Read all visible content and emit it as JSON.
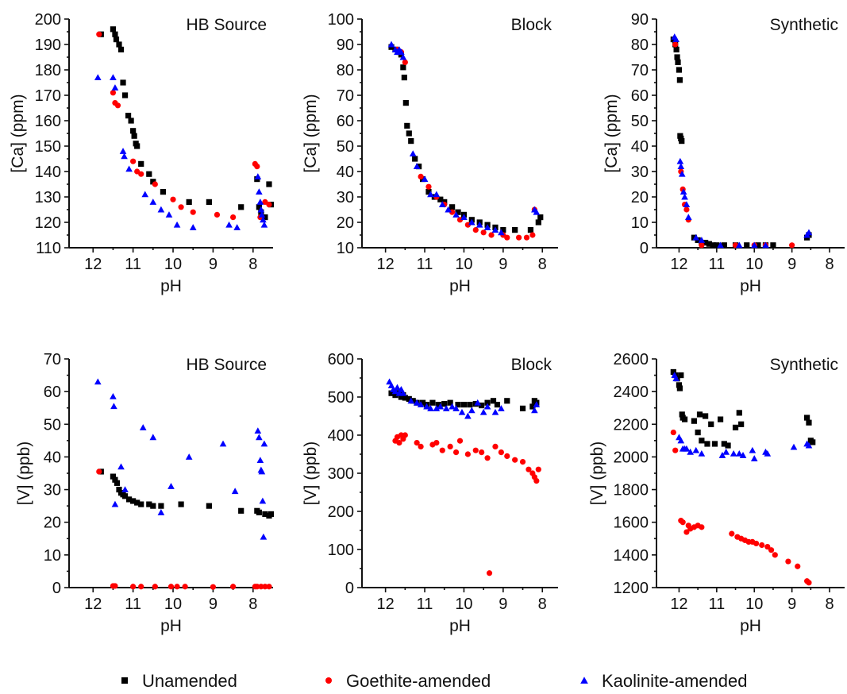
{
  "colors": {
    "Unamended": "#000000",
    "Goethite-amended": "#ff0000",
    "Kaolinite-amended": "#0000ff"
  },
  "legend": {
    "placement": "bottom-center",
    "items": [
      {
        "label": "Unamended",
        "marker": "square",
        "color": "#000000"
      },
      {
        "label": "Goethite-amended",
        "marker": "circle",
        "color": "#ff0000"
      },
      {
        "label": "Kaolinite-amended",
        "marker": "triangle",
        "color": "#0000ff"
      }
    ]
  },
  "chart_data": [
    {
      "type": "scatter",
      "title": "HB Source",
      "xlabel": "pH",
      "ylabel": "[Ca] (ppm)",
      "xlim": [
        12.6,
        7.5
      ],
      "ylim": [
        110,
        200
      ],
      "xticks": [
        12,
        11,
        10,
        9,
        8
      ],
      "yticks": [
        110,
        120,
        130,
        140,
        150,
        160,
        170,
        180,
        190,
        200
      ],
      "series": [
        {
          "name": "Unamended",
          "x": [
            11.8,
            11.5,
            11.45,
            11.42,
            11.35,
            11.3,
            11.25,
            11.2,
            11.12,
            11.05,
            11.0,
            10.97,
            10.93,
            10.9,
            10.8,
            10.6,
            10.5,
            10.25,
            9.6,
            9.1,
            8.3,
            7.9,
            7.85,
            7.8,
            7.7,
            7.6,
            7.55
          ],
          "y": [
            194,
            196,
            194,
            192,
            190,
            188,
            175,
            170,
            162,
            160,
            156,
            154,
            151,
            150,
            143,
            139,
            136,
            132,
            128,
            128,
            126,
            137,
            126,
            124,
            122,
            135,
            127
          ]
        },
        {
          "name": "Goethite-amended",
          "x": [
            11.85,
            11.5,
            11.45,
            11.38,
            11.0,
            10.9,
            10.8,
            10.45,
            10.0,
            9.8,
            9.5,
            8.9,
            8.5,
            7.95,
            7.9,
            7.82,
            7.7,
            7.6
          ],
          "y": [
            194,
            171,
            167,
            166,
            144,
            140,
            139,
            135,
            129,
            126,
            124,
            123,
            122,
            143,
            142,
            122,
            128,
            127
          ]
        },
        {
          "name": "Kaolinite-amended",
          "x": [
            11.88,
            11.5,
            11.45,
            11.25,
            11.22,
            11.1,
            10.7,
            10.5,
            10.3,
            10.1,
            9.9,
            9.5,
            8.6,
            8.4,
            7.88,
            7.85,
            7.82,
            7.8,
            7.78,
            7.75,
            7.72
          ],
          "y": [
            177,
            177,
            173,
            148,
            146,
            141,
            131,
            128,
            125,
            123,
            119,
            118,
            119,
            118,
            138,
            132,
            128,
            125,
            123,
            121,
            119
          ]
        }
      ]
    },
    {
      "type": "scatter",
      "title": "Block",
      "xlabel": "pH",
      "ylabel": "[Ca] (ppm)",
      "xlim": [
        12.6,
        7.6
      ],
      "ylim": [
        10,
        100
      ],
      "xticks": [
        12,
        11,
        10,
        9,
        8
      ],
      "yticks": [
        10,
        20,
        30,
        40,
        50,
        60,
        70,
        80,
        90,
        100
      ],
      "series": [
        {
          "name": "Unamended",
          "x": [
            11.85,
            11.75,
            11.65,
            11.6,
            11.55,
            11.52,
            11.48,
            11.45,
            11.4,
            11.35,
            11.25,
            11.15,
            11.05,
            10.9,
            10.75,
            10.6,
            10.5,
            10.3,
            10.15,
            10.0,
            9.8,
            9.6,
            9.4,
            9.2,
            9.0,
            8.7,
            8.3,
            8.1,
            8.05
          ],
          "y": [
            89,
            88,
            87,
            86,
            81,
            77,
            67,
            58,
            55,
            52,
            45,
            42,
            37,
            32,
            30,
            29,
            28,
            26,
            24,
            23,
            21,
            20,
            19,
            18,
            17,
            17,
            17,
            20,
            22
          ]
        },
        {
          "name": "Goethite-amended",
          "x": [
            11.7,
            11.6,
            11.5,
            11.1,
            10.9,
            10.7,
            10.5,
            10.3,
            10.1,
            9.9,
            9.7,
            9.5,
            9.3,
            9.0,
            8.9,
            8.6,
            8.4,
            8.25,
            8.2
          ],
          "y": [
            88,
            87,
            83,
            38,
            34,
            30,
            27,
            24,
            21,
            19,
            17,
            16,
            15,
            15,
            14,
            14,
            14,
            15,
            25
          ]
        },
        {
          "name": "Kaolinite-amended",
          "x": [
            11.85,
            11.75,
            11.7,
            11.65,
            11.6,
            11.55,
            11.3,
            11.2,
            11.0,
            10.85,
            10.7,
            10.55,
            10.4,
            10.2,
            10.0,
            9.8,
            9.6,
            9.4,
            9.2,
            9.05,
            8.2,
            8.15
          ],
          "y": [
            90,
            88,
            87,
            88,
            87,
            85,
            47,
            42,
            37,
            31,
            31,
            27,
            25,
            23,
            22,
            20,
            19,
            18,
            17,
            16,
            25,
            24
          ]
        }
      ]
    },
    {
      "type": "scatter",
      "title": "Synthetic",
      "xlabel": "pH",
      "ylabel": "[Ca] (ppm)",
      "xlim": [
        12.6,
        7.6
      ],
      "ylim": [
        0,
        90
      ],
      "xticks": [
        12,
        11,
        10,
        9,
        8
      ],
      "yticks": [
        0,
        10,
        20,
        30,
        40,
        50,
        60,
        70,
        80,
        90
      ],
      "series": [
        {
          "name": "Unamended",
          "x": [
            12.15,
            12.1,
            12.07,
            12.05,
            12.03,
            12.0,
            11.98,
            11.97,
            11.95,
            11.93,
            11.6,
            11.5,
            11.4,
            11.3,
            11.2,
            11.1,
            11.0,
            10.8,
            10.5,
            10.2,
            9.9,
            9.7,
            9.5,
            8.6,
            8.55
          ],
          "y": [
            82,
            80,
            78,
            75,
            73,
            70,
            66,
            44,
            43,
            42,
            4,
            3,
            2,
            2,
            1.5,
            1,
            1,
            1,
            1,
            1,
            1,
            1,
            1,
            4,
            5
          ]
        },
        {
          "name": "Goethite-amended",
          "x": [
            12.1,
            11.95,
            11.9,
            11.85,
            11.8,
            11.75,
            11.4,
            10.5,
            10.0,
            9.7,
            9.0
          ],
          "y": [
            80,
            30,
            23,
            17,
            15,
            11,
            1,
            1,
            1,
            1,
            1
          ]
        },
        {
          "name": "Kaolinite-amended",
          "x": [
            12.12,
            12.08,
            11.97,
            11.95,
            11.92,
            11.88,
            11.85,
            11.8,
            11.75,
            11.55,
            11.4,
            10.9,
            10.4,
            10.0,
            9.7,
            8.6,
            8.55
          ],
          "y": [
            83,
            82,
            34,
            32,
            29,
            22,
            20,
            17,
            12,
            4,
            3,
            1,
            1,
            1,
            1,
            5,
            6
          ]
        }
      ]
    },
    {
      "type": "scatter",
      "title": "HB Source",
      "xlabel": "pH",
      "ylabel": "[V] (ppb)",
      "xlim": [
        12.6,
        7.5
      ],
      "ylim": [
        0,
        70
      ],
      "xticks": [
        12,
        11,
        10,
        9,
        8
      ],
      "yticks": [
        0,
        10,
        20,
        30,
        40,
        50,
        60,
        70
      ],
      "series": [
        {
          "name": "Unamended",
          "x": [
            11.8,
            11.5,
            11.45,
            11.4,
            11.35,
            11.3,
            11.25,
            11.2,
            11.1,
            11.0,
            10.9,
            10.8,
            10.6,
            10.5,
            10.3,
            9.8,
            9.1,
            8.3,
            7.9,
            7.85,
            7.7,
            7.6,
            7.55
          ],
          "y": [
            35.5,
            34,
            33,
            32,
            30,
            29,
            28.5,
            28,
            27,
            26.5,
            26,
            25.5,
            25.5,
            25,
            25,
            25.5,
            25,
            23.5,
            23.5,
            23,
            22.5,
            22,
            22.5
          ]
        },
        {
          "name": "Goethite-amended",
          "x": [
            11.85,
            11.5,
            11.45,
            11.0,
            10.8,
            10.45,
            10.05,
            9.9,
            9.7,
            9.0,
            8.5,
            7.95,
            7.9,
            7.8,
            7.7,
            7.6
          ],
          "y": [
            35.5,
            0.5,
            0.5,
            0.3,
            0.3,
            0.3,
            0.3,
            0.3,
            0.3,
            0.2,
            0.3,
            0.3,
            0.3,
            0.3,
            0.3,
            0.3
          ]
        },
        {
          "name": "Kaolinite-amended",
          "x": [
            11.88,
            11.5,
            11.48,
            11.45,
            11.3,
            11.2,
            10.75,
            10.5,
            10.3,
            10.05,
            9.6,
            8.75,
            8.45,
            7.88,
            7.85,
            7.82,
            7.8,
            7.78,
            7.76,
            7.74,
            7.72
          ],
          "y": [
            63,
            58.5,
            55.5,
            25.5,
            37,
            30,
            49,
            46,
            23,
            31,
            40,
            44,
            29.5,
            48,
            46,
            39,
            36,
            35.5,
            26.5,
            15.5,
            44
          ]
        }
      ]
    },
    {
      "type": "scatter",
      "title": "Block",
      "xlabel": "pH",
      "ylabel": "[V] (ppb)",
      "xlim": [
        12.6,
        7.6
      ],
      "ylim": [
        0,
        600
      ],
      "xticks": [
        12,
        11,
        10,
        9,
        8
      ],
      "yticks": [
        0,
        100,
        200,
        300,
        400,
        500,
        600
      ],
      "series": [
        {
          "name": "Unamended",
          "x": [
            11.85,
            11.75,
            11.65,
            11.6,
            11.55,
            11.5,
            11.4,
            11.3,
            11.2,
            11.05,
            10.95,
            10.8,
            10.65,
            10.5,
            10.35,
            10.15,
            10.0,
            9.85,
            9.7,
            9.55,
            9.4,
            9.25,
            9.15,
            8.9,
            8.5,
            8.25,
            8.2,
            8.15
          ],
          "y": [
            510,
            505,
            510,
            500,
            505,
            498,
            495,
            490,
            485,
            485,
            480,
            485,
            480,
            482,
            485,
            480,
            480,
            480,
            482,
            478,
            485,
            490,
            480,
            490,
            470,
            475,
            490,
            485
          ]
        },
        {
          "name": "Goethite-amended",
          "x": [
            11.75,
            11.7,
            11.65,
            11.6,
            11.55,
            11.5,
            11.2,
            11.1,
            10.8,
            10.7,
            10.55,
            10.35,
            10.2,
            10.1,
            9.9,
            9.7,
            9.55,
            9.4,
            9.35,
            9.2,
            9.05,
            8.9,
            8.7,
            8.5,
            8.35,
            8.25,
            8.2,
            8.15,
            8.1
          ],
          "y": [
            385,
            395,
            380,
            400,
            390,
            400,
            380,
            370,
            375,
            380,
            360,
            370,
            355,
            385,
            350,
            360,
            355,
            340,
            38,
            370,
            355,
            345,
            335,
            330,
            310,
            300,
            290,
            280,
            310
          ]
        },
        {
          "name": "Kaolinite-amended",
          "x": [
            11.9,
            11.85,
            11.8,
            11.75,
            11.7,
            11.65,
            11.6,
            11.55,
            11.35,
            11.2,
            11.1,
            10.95,
            10.85,
            10.7,
            10.6,
            10.45,
            10.3,
            10.2,
            10.05,
            9.9,
            9.8,
            9.65,
            9.5,
            9.4,
            9.2,
            9.05,
            8.2,
            8.15
          ],
          "y": [
            540,
            530,
            520,
            515,
            525,
            510,
            520,
            510,
            490,
            485,
            480,
            475,
            470,
            470,
            475,
            470,
            475,
            470,
            460,
            450,
            465,
            485,
            460,
            475,
            460,
            470,
            465,
            480
          ]
        }
      ]
    },
    {
      "type": "scatter",
      "title": "Synthetic",
      "xlabel": "pH",
      "ylabel": "[V] (ppb)",
      "xlim": [
        12.6,
        7.6
      ],
      "ylim": [
        1200,
        2600
      ],
      "xticks": [
        12,
        11,
        10,
        9,
        8
      ],
      "yticks": [
        1200,
        1400,
        1600,
        1800,
        2000,
        2200,
        2400,
        2600
      ],
      "series": [
        {
          "name": "Unamended",
          "x": [
            12.15,
            12.1,
            12.05,
            12.0,
            11.98,
            11.95,
            11.92,
            11.9,
            11.85,
            11.6,
            11.5,
            11.45,
            11.4,
            11.3,
            11.25,
            11.15,
            11.05,
            10.9,
            10.8,
            10.7,
            10.5,
            10.4,
            10.35,
            8.6,
            8.55,
            8.5,
            8.45
          ],
          "y": [
            2520,
            2500,
            2480,
            2440,
            2420,
            2500,
            2260,
            2240,
            2230,
            2220,
            2150,
            2260,
            2100,
            2250,
            2080,
            2200,
            2080,
            2230,
            2080,
            2070,
            2180,
            2270,
            2200,
            2240,
            2210,
            2100,
            2090
          ]
        },
        {
          "name": "Goethite-amended",
          "x": [
            12.15,
            12.1,
            11.95,
            11.9,
            11.8,
            11.75,
            11.7,
            11.6,
            11.5,
            11.4,
            10.6,
            10.45,
            10.35,
            10.25,
            10.15,
            10.05,
            9.95,
            9.8,
            9.65,
            9.55,
            9.45,
            9.1,
            8.85,
            8.6,
            8.55
          ],
          "y": [
            2150,
            2040,
            1610,
            1600,
            1540,
            1580,
            1560,
            1570,
            1580,
            1570,
            1530,
            1510,
            1500,
            1490,
            1480,
            1480,
            1470,
            1460,
            1450,
            1430,
            1400,
            1360,
            1330,
            1240,
            1230
          ]
        },
        {
          "name": "Kaolinite-amended",
          "x": [
            12.12,
            12.08,
            12.0,
            11.95,
            11.9,
            11.85,
            11.8,
            11.7,
            11.55,
            11.4,
            10.85,
            10.75,
            10.55,
            10.4,
            10.3,
            10.05,
            10.0,
            9.7,
            9.65,
            8.95,
            8.6,
            8.55
          ],
          "y": [
            2500,
            2480,
            2120,
            2100,
            2050,
            2050,
            2050,
            2030,
            2040,
            2020,
            2010,
            2030,
            2020,
            2020,
            2010,
            2040,
            1990,
            2030,
            2020,
            2060,
            2080,
            2070
          ]
        }
      ]
    }
  ]
}
